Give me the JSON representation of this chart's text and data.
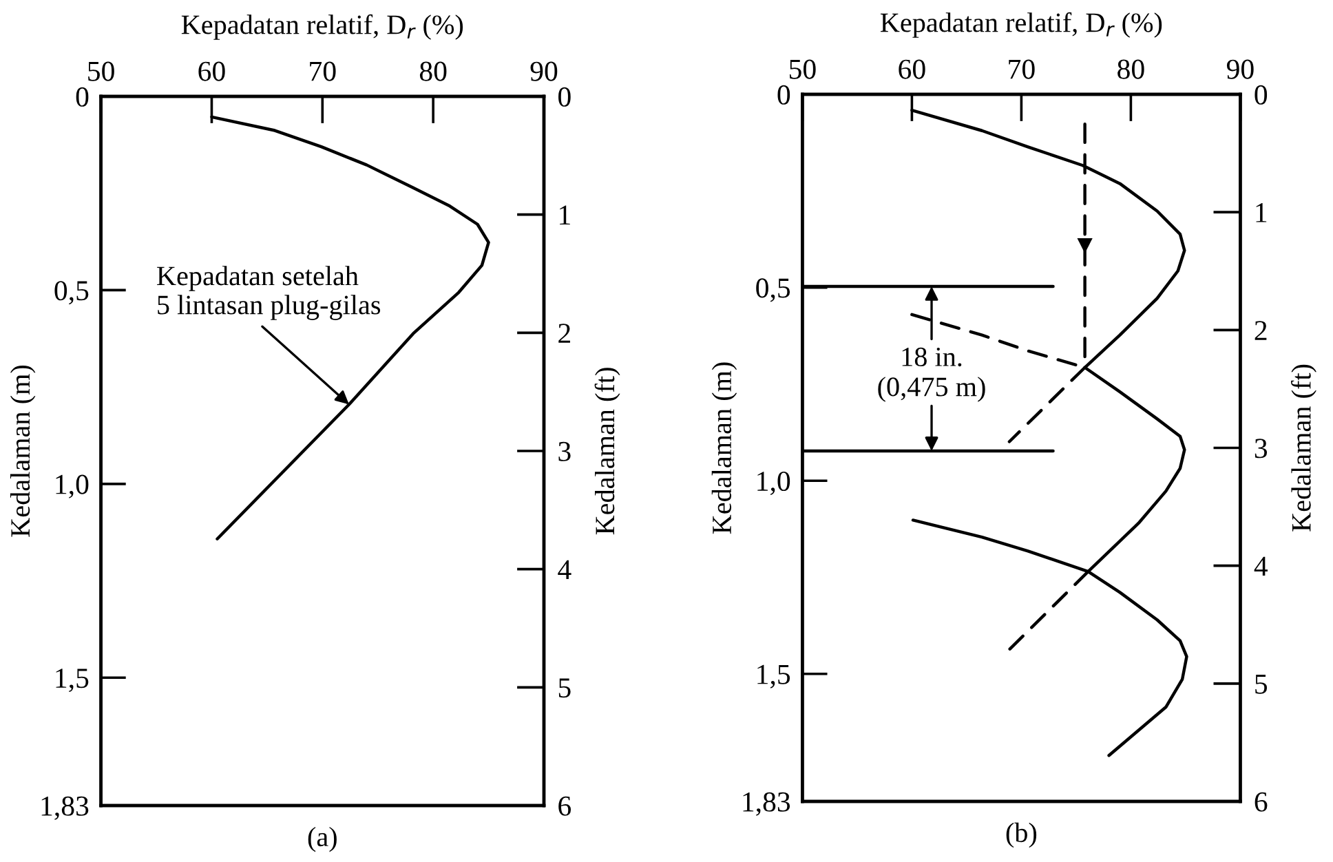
{
  "chart_data": [
    {
      "type": "line",
      "xlabel": "Kepadatan relatif, D$_{r}$ (%)",
      "ylabel": "Kedalaman (m)",
      "y2label": "Kedalaman (ft)",
      "xlim": [
        50,
        90
      ],
      "xticks": [
        50,
        60,
        70,
        80,
        90
      ],
      "ylim": [
        1.83,
        0
      ],
      "yticks": [
        0,
        {
          "value": 0.5,
          "label": "0,5"
        },
        {
          "value": 1.0,
          "label": "1,0"
        },
        {
          "value": 1.5,
          "label": "1,5"
        },
        {
          "value": 1.83,
          "label": "1,83"
        }
      ],
      "y2lim": [
        6,
        0
      ],
      "y2ticks": [
        0,
        1,
        2,
        3,
        4,
        5,
        6
      ],
      "series": [
        {
          "color": "#000000",
          "line_style": "solid",
          "x": [
            60.0,
            65.7,
            69.9,
            74.0,
            78.2,
            81.5,
            84.0,
            85.0,
            84.4,
            82.3,
            78.2,
            72.4,
            60.5
          ],
          "values": [
            0.053,
            0.088,
            0.13,
            0.177,
            0.236,
            0.283,
            0.33,
            0.377,
            0.436,
            0.506,
            0.612,
            0.795,
            1.142
          ]
        }
      ],
      "annotations": [
        {
          "text": "Kepadatan setelah\n5 lintasan plug-gilas",
          "x": 72.4,
          "y": 0.795
        },
        "(a)"
      ]
    },
    {
      "type": "line",
      "xlabel": "Kepadatan relatif, D$_{r}$ (%)",
      "ylabel": "Kedalaman (m)",
      "y2label": "Kedalaman (ft)",
      "xlim": [
        50,
        90
      ],
      "xticks": [
        50,
        60,
        70,
        80,
        90
      ],
      "ylim": [
        1.83,
        0
      ],
      "yticks": [
        0,
        {
          "value": 0.5,
          "label": "0,5"
        },
        {
          "value": 1.0,
          "label": "1,0"
        },
        {
          "value": 1.5,
          "label": "1,5"
        },
        {
          "value": 1.83,
          "label": "1,83"
        }
      ],
      "y2lim": [
        6,
        0
      ],
      "y2ticks": [
        0,
        1,
        2,
        3,
        4,
        5,
        6
      ],
      "series": [
        {
          "color": "#000000",
          "line_style": "solid",
          "x": [
            60.0,
            66.4,
            70.6,
            75.6,
            79.0,
            82.4,
            84.5,
            84.9,
            84.3,
            82.4,
            79.0,
            75.8
          ],
          "values": [
            0.041,
            0.094,
            0.136,
            0.184,
            0.231,
            0.302,
            0.362,
            0.404,
            0.457,
            0.528,
            0.623,
            0.707
          ]
        },
        {
          "color": "#000000",
          "line_style": "dashed",
          "x": [
            75.8,
            68.9
          ],
          "values": [
            0.707,
            0.899
          ]
        },
        {
          "color": "#000000",
          "line_style": "dashed",
          "x": [
            60.0,
            66.4,
            70.6,
            75.8
          ],
          "values": [
            0.57,
            0.623,
            0.664,
            0.707
          ]
        },
        {
          "color": "#000000",
          "line_style": "solid",
          "x": [
            75.8,
            79.0,
            82.4,
            84.5,
            84.9,
            84.5,
            83.2,
            80.7,
            76.1
          ],
          "values": [
            0.707,
            0.77,
            0.84,
            0.885,
            0.92,
            0.968,
            1.027,
            1.11,
            1.235
          ]
        },
        {
          "color": "#000000",
          "line_style": "dashed",
          "x": [
            76.1,
            68.9
          ],
          "values": [
            1.235,
            1.437
          ]
        },
        {
          "color": "#000000",
          "line_style": "solid",
          "x": [
            60.1,
            66.4,
            70.6,
            76.1,
            79.0,
            82.4,
            84.5,
            85.1,
            84.7,
            83.2,
            78.0
          ],
          "values": [
            1.102,
            1.146,
            1.182,
            1.235,
            1.289,
            1.36,
            1.414,
            1.455,
            1.514,
            1.586,
            1.711
          ]
        },
        {
          "color": "#000000",
          "line_style": "dashed",
          "x": [
            75.8,
            75.8
          ],
          "values": [
            0.077,
            0.707
          ]
        },
        {
          "color": "#000000",
          "line_style": "solid",
          "x": [
            50,
            72.9
          ],
          "values": [
            0.497,
            0.497
          ]
        },
        {
          "color": "#000000",
          "line_style": "solid",
          "x": [
            50,
            72.9
          ],
          "values": [
            0.923,
            0.923
          ]
        }
      ],
      "annotations": [
        {
          "text": "18 in.\n(0,475 m)",
          "x": 61.8,
          "y": 0.497
        },
        "(b)"
      ]
    }
  ]
}
